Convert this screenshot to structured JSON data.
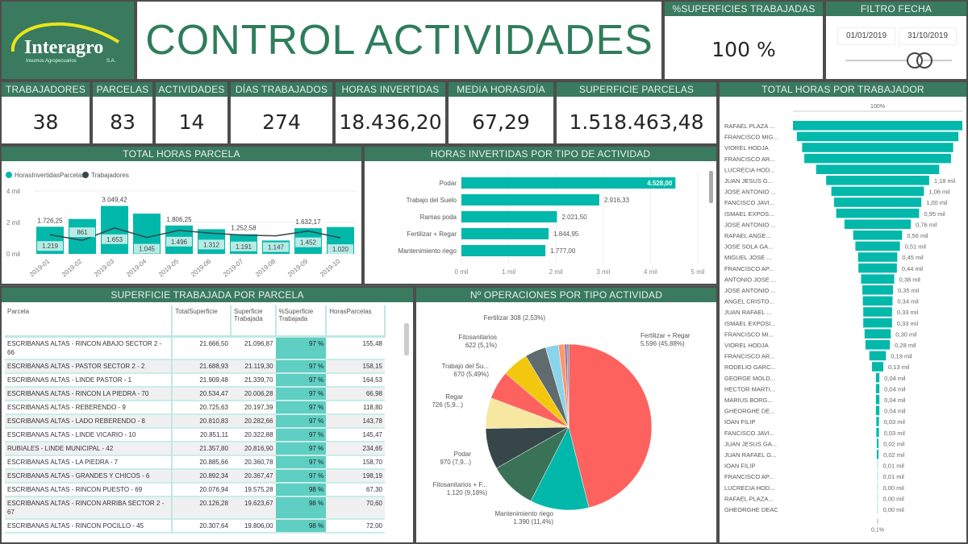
{
  "logo": {
    "name": "Interagro",
    "tagline": "Insumos Agropecuarios",
    "suffix": "S.A."
  },
  "title": "CONTROL ACTIVIDADES",
  "pct_superficies": {
    "label": "%SUPERFICIES TRABAJADAS",
    "value": "100 %"
  },
  "filtro_fecha": {
    "label": "FILTRO FECHA",
    "start": "01/01/2019",
    "end": "31/10/2019",
    "slider_start_fraction": 0.62,
    "slider_end_fraction": 0.72
  },
  "kpis": [
    {
      "label": "TRABAJADORES",
      "value": "38"
    },
    {
      "label": "PARCELAS",
      "value": "83"
    },
    {
      "label": "ACTIVIDADES",
      "value": "14"
    },
    {
      "label": "DÍAS TRABAJADOS",
      "value": "274"
    },
    {
      "label": "HORAS INVERTIDAS",
      "value": "18.436,20"
    },
    {
      "label": "MEDIA HORAS/DÍA",
      "value": "67,29"
    },
    {
      "label": "SUPERFICIE PARCELAS",
      "value": "1.518.463,48"
    }
  ],
  "colors": {
    "header": "#3a7a5e",
    "teal": "#01b8aa",
    "line": "#374649",
    "table_pct": "#5ecfc2"
  },
  "chart_data": [
    {
      "type": "bar+line",
      "title": "TOTAL HORAS PARCELA",
      "legend": [
        "HorasInvertidasParcelas",
        "Trabajadores"
      ],
      "legend_position": "top-left",
      "categories": [
        "2019-01",
        "2019-02",
        "2019-03",
        "2019-04",
        "2019-05",
        "2019-06",
        "2019-07",
        "2019-08",
        "2019-09",
        "2019-10"
      ],
      "y_ticks": [
        "0 mil",
        "2 mil",
        "4 mil"
      ],
      "ylim": [
        0,
        4000
      ],
      "series": [
        {
          "name": "HorasInvertidasParcelas",
          "type": "bar",
          "values": [
            1726.25,
            2220,
            3049.42,
            2560,
            1806.25,
            1570,
            1252.58,
            850,
            1632.17,
            1710
          ],
          "labels": [
            "1.726,25",
            "",
            "3.049,42",
            "",
            "1.806,25",
            "",
            "1.252,58",
            "",
            "1.632,17",
            ""
          ]
        },
        {
          "name": "Trabajadores",
          "type": "line",
          "values": [
            1219,
            861,
            1653,
            1045,
            1496,
            1312,
            1191,
            1147,
            1452,
            1020
          ],
          "labels": [
            "1.219",
            "861",
            "1.653",
            "1.045",
            "1.496",
            "1.312",
            "1.191",
            "1.147",
            "1.452",
            "1.020"
          ]
        }
      ]
    },
    {
      "type": "bar",
      "orientation": "horizontal",
      "title": "HORAS INVERTIDAS POR TIPO DE ACTIVIDAD",
      "categories": [
        "Podar",
        "Trabajo del Suelo",
        "Ramas poda",
        "Fertilizar + Regar",
        "Mantenimiento riego"
      ],
      "values": [
        4528.0,
        2916.33,
        2021.5,
        1844.95,
        1777.0
      ],
      "labels": [
        "4.528,00",
        "2.916,33",
        "2.021,50",
        "1.844,95",
        "1.777,00"
      ],
      "x_ticks": [
        "0 mil",
        "1 mil",
        "2 mil",
        "3 mil",
        "4 mil",
        "5 mil"
      ],
      "xlim": [
        0,
        5000
      ]
    },
    {
      "type": "pie",
      "title": "Nº OPERACIONES POR TIPO ACTIVIDAD",
      "slices": [
        {
          "name": "Fertilizar + Regar",
          "value": 5596,
          "label1": "Fertilizar + Regar",
          "label2": "5.596 (45,88%)",
          "color": "#fd625e"
        },
        {
          "name": "Mantenimiento riego",
          "value": 1390,
          "label1": "Mantenimiento riego",
          "label2": "1.390 (11,4%)",
          "color": "#01b8aa"
        },
        {
          "name": "Fitosanitarios + F...",
          "value": 1120,
          "label1": "Fitosanitarios + F...",
          "label2": "1.120 (9,18%)",
          "color": "#3a7258"
        },
        {
          "name": "Podar",
          "value": 970,
          "label1": "Podar",
          "label2": "970 (7,9...)",
          "color": "#374649"
        },
        {
          "name": "Regar",
          "value": 726,
          "label1": "Regar",
          "label2": "726 (5,9...)",
          "color": "#f6e7a1"
        },
        {
          "name": "Trabajo del Su...",
          "value": 670,
          "label1": "Trabajo del Su...",
          "label2": "670 (5,49%)",
          "color": "#fd625e"
        },
        {
          "name": "Fitosanitarios",
          "value": 622,
          "label1": "Fitosanitarios",
          "label2": "622 (5,1%)",
          "color": "#f2c80f"
        },
        {
          "name": "",
          "value": 500,
          "label1": "",
          "label2": "",
          "color": "#5f6b6d"
        },
        {
          "name": "Fertilizar",
          "value": 308,
          "label1": "Fertilizar 308 (2,53%)",
          "label2": "",
          "color": "#8ad4eb"
        },
        {
          "name": "",
          "value": 140,
          "label1": "",
          "label2": "",
          "color": "#fe9666"
        },
        {
          "name": "",
          "value": 60,
          "label1": "",
          "label2": "",
          "color": "#a66999"
        },
        {
          "name": "",
          "value": 40,
          "label1": "",
          "label2": "",
          "color": "#3599b8"
        }
      ]
    },
    {
      "type": "funnel",
      "title": "TOTAL HORAS POR TRABAJADOR",
      "top_label": "100%",
      "bottom_label": "0,1%",
      "rows": [
        {
          "name": "RAFAEL PLAZA ...",
          "value": 1.94,
          "label": ""
        },
        {
          "name": "FRANCISCO MIG...",
          "value": 1.85,
          "label": ""
        },
        {
          "name": "VIOREL HODJA",
          "value": 1.73,
          "label": ""
        },
        {
          "name": "FRANCISCO AR...",
          "value": 1.68,
          "label": ""
        },
        {
          "name": "LUCRECIA HOD...",
          "value": 1.41,
          "label": ""
        },
        {
          "name": "JUAN JESUS G...",
          "value": 1.18,
          "label": "1,18 mil"
        },
        {
          "name": "JOSE ANTONIO ...",
          "value": 1.06,
          "label": "1,06 mil"
        },
        {
          "name": "FANCISCO JAVI...",
          "value": 1.0,
          "label": "1,00 mil"
        },
        {
          "name": "ISMAEL EXPOS...",
          "value": 0.95,
          "label": "0,95 mil"
        },
        {
          "name": "JOSE ANTONIO ...",
          "value": 0.76,
          "label": "0,76 mil"
        },
        {
          "name": "RAFAEL ANGE...",
          "value": 0.56,
          "label": "0,56 mil"
        },
        {
          "name": "JOSE SOLA GA...",
          "value": 0.51,
          "label": "0,51 mil"
        },
        {
          "name": "MIGUEL JOSE ...",
          "value": 0.45,
          "label": "0,45 mil"
        },
        {
          "name": "FRANCISCO AP...",
          "value": 0.44,
          "label": "0,44 mil"
        },
        {
          "name": "ANTONIO JOSE ...",
          "value": 0.38,
          "label": "0,38 mil"
        },
        {
          "name": "JOSE ANTONIO ...",
          "value": 0.35,
          "label": "0,35 mil"
        },
        {
          "name": "ANGEL CRISTO...",
          "value": 0.34,
          "label": "0,34 mil"
        },
        {
          "name": "JUAN RAFAEL ...",
          "value": 0.33,
          "label": "0,33 mil"
        },
        {
          "name": "ISMAEL EXPOSI...",
          "value": 0.33,
          "label": "0,33 mil"
        },
        {
          "name": "FRANCISCO MI...",
          "value": 0.3,
          "label": "0,30 mil"
        },
        {
          "name": "VIOREL HODJA",
          "value": 0.28,
          "label": "0,28 mil"
        },
        {
          "name": "FRANCISCO AR...",
          "value": 0.19,
          "label": "0,19 mil"
        },
        {
          "name": "RODELIO GARC...",
          "value": 0.13,
          "label": "0,13 mil"
        },
        {
          "name": "GEORGE MOLD...",
          "value": 0.04,
          "label": "0,04 mil"
        },
        {
          "name": "HECTOR MARTI...",
          "value": 0.04,
          "label": "0,04 mil"
        },
        {
          "name": "MARIUS BORG...",
          "value": 0.04,
          "label": "0,04 mil"
        },
        {
          "name": "GHEORGHE DE...",
          "value": 0.04,
          "label": "0,04 mil"
        },
        {
          "name": "IOAN FILIP",
          "value": 0.03,
          "label": "0,03 mil"
        },
        {
          "name": "FANCISCO JAVI...",
          "value": 0.03,
          "label": "0,03 mil"
        },
        {
          "name": "JUAN JESUS GA...",
          "value": 0.02,
          "label": "0,02 mil"
        },
        {
          "name": "JUAN RAFAEL G...",
          "value": 0.02,
          "label": "0,02 mil"
        },
        {
          "name": "IOAN FILIP",
          "value": 0.01,
          "label": "0,01 mil"
        },
        {
          "name": "FRANCISCO AP...",
          "value": 0.01,
          "label": "0,01 mil"
        },
        {
          "name": "LUCRECIA HOD...",
          "value": 0.004,
          "label": "0,00 mil"
        },
        {
          "name": "RAFAEL PLAZA...",
          "value": 0.003,
          "label": "0,00 mil"
        },
        {
          "name": "GHEORGHE DEAC",
          "value": 0.002,
          "label": "0,00 mil"
        }
      ]
    }
  ],
  "table": {
    "title": "SUPERFICIE TRABAJADA POR PARCELA",
    "columns": [
      "Parcela",
      "TotalSuperficie",
      "Superficie Trabajada",
      "%Superficie Trabajada",
      "HorasParcelas"
    ],
    "rows": [
      [
        "ESCRIBANAS ALTAS - RINCON ABAJO SECTOR 2 - 66",
        "21.666,50",
        "21.096,87",
        "97 %",
        "155,48"
      ],
      [
        "ESCRIBANAS ALTAS - PASTOR SECTOR 2 - 2",
        "21.688,93",
        "21.119,30",
        "97 %",
        "158,15"
      ],
      [
        "ESCRIBANAS ALTAS - LINDE PASTOR - 1",
        "21.909,48",
        "21.339,70",
        "97 %",
        "164,53"
      ],
      [
        "ESCRIBANAS ALTAS - RINCON LA PIEDRA - 70",
        "20.534,47",
        "20.006,28",
        "97 %",
        "66,98"
      ],
      [
        "ESCRIBANAS ALTAS - REBERENDO - 9",
        "20.725,63",
        "20.197,39",
        "97 %",
        "118,80"
      ],
      [
        "ESCRIBANAS ALTAS - LADO REBERENDO - 8",
        "20.810,83",
        "20.282,66",
        "97 %",
        "143,78"
      ],
      [
        "ESCRIBANAS ALTAS - LINDE VICARIO - 10",
        "20.851,11",
        "20.322,88",
        "97 %",
        "145,47"
      ],
      [
        "RUBIALES - LINDE MUNICIPAL - 42",
        "21.357,80",
        "20.816,90",
        "97 %",
        "234,65"
      ],
      [
        "ESCRIBANAS ALTAS - LA PIEDRA - 7",
        "20.885,66",
        "20.360,78",
        "97 %",
        "158,70"
      ],
      [
        "ESCRIBANAS ALTAS - GRANDES Y CHICOS - 6",
        "20.892,34",
        "20.367,47",
        "97 %",
        "198,19"
      ],
      [
        "ESCRIBANAS ALTAS - RINCON PUESTO - 69",
        "20.076,94",
        "19.575,28",
        "98 %",
        "67,30"
      ],
      [
        "ESCRIBANAS ALTAS - RINCON ARRIBA SECTOR 2 - 67",
        "20.126,28",
        "19.623,67",
        "98 %",
        "70,60"
      ],
      [
        "ESCRIBANAS ALTAS - RINCON POCILLO - 45",
        "20.307,64",
        "19.806,00",
        "98 %",
        "72,00"
      ]
    ]
  }
}
